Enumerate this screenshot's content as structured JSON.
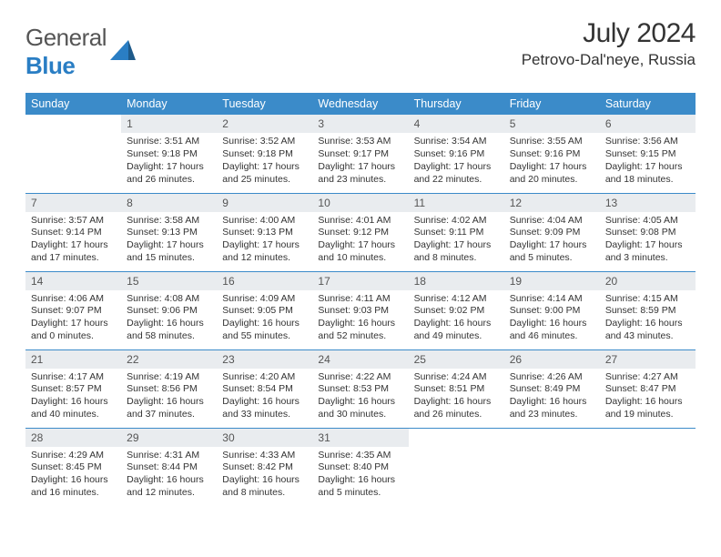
{
  "logo": {
    "text1": "General",
    "text2": "Blue"
  },
  "title": "July 2024",
  "location": "Petrovo-Dal'neye, Russia",
  "colors": {
    "header_bg": "#3b8bc9",
    "header_text": "#ffffff",
    "daynum_bg": "#e9ecef",
    "row_border": "#3b8bc9",
    "logo_gray": "#555555",
    "logo_blue": "#2a7ec4"
  },
  "weekdays": [
    "Sunday",
    "Monday",
    "Tuesday",
    "Wednesday",
    "Thursday",
    "Friday",
    "Saturday"
  ],
  "weeks": [
    [
      {
        "empty": true
      },
      {
        "day": "1",
        "sunrise": "Sunrise: 3:51 AM",
        "sunset": "Sunset: 9:18 PM",
        "daylight1": "Daylight: 17 hours",
        "daylight2": "and 26 minutes."
      },
      {
        "day": "2",
        "sunrise": "Sunrise: 3:52 AM",
        "sunset": "Sunset: 9:18 PM",
        "daylight1": "Daylight: 17 hours",
        "daylight2": "and 25 minutes."
      },
      {
        "day": "3",
        "sunrise": "Sunrise: 3:53 AM",
        "sunset": "Sunset: 9:17 PM",
        "daylight1": "Daylight: 17 hours",
        "daylight2": "and 23 minutes."
      },
      {
        "day": "4",
        "sunrise": "Sunrise: 3:54 AM",
        "sunset": "Sunset: 9:16 PM",
        "daylight1": "Daylight: 17 hours",
        "daylight2": "and 22 minutes."
      },
      {
        "day": "5",
        "sunrise": "Sunrise: 3:55 AM",
        "sunset": "Sunset: 9:16 PM",
        "daylight1": "Daylight: 17 hours",
        "daylight2": "and 20 minutes."
      },
      {
        "day": "6",
        "sunrise": "Sunrise: 3:56 AM",
        "sunset": "Sunset: 9:15 PM",
        "daylight1": "Daylight: 17 hours",
        "daylight2": "and 18 minutes."
      }
    ],
    [
      {
        "day": "7",
        "sunrise": "Sunrise: 3:57 AM",
        "sunset": "Sunset: 9:14 PM",
        "daylight1": "Daylight: 17 hours",
        "daylight2": "and 17 minutes."
      },
      {
        "day": "8",
        "sunrise": "Sunrise: 3:58 AM",
        "sunset": "Sunset: 9:13 PM",
        "daylight1": "Daylight: 17 hours",
        "daylight2": "and 15 minutes."
      },
      {
        "day": "9",
        "sunrise": "Sunrise: 4:00 AM",
        "sunset": "Sunset: 9:13 PM",
        "daylight1": "Daylight: 17 hours",
        "daylight2": "and 12 minutes."
      },
      {
        "day": "10",
        "sunrise": "Sunrise: 4:01 AM",
        "sunset": "Sunset: 9:12 PM",
        "daylight1": "Daylight: 17 hours",
        "daylight2": "and 10 minutes."
      },
      {
        "day": "11",
        "sunrise": "Sunrise: 4:02 AM",
        "sunset": "Sunset: 9:11 PM",
        "daylight1": "Daylight: 17 hours",
        "daylight2": "and 8 minutes."
      },
      {
        "day": "12",
        "sunrise": "Sunrise: 4:04 AM",
        "sunset": "Sunset: 9:09 PM",
        "daylight1": "Daylight: 17 hours",
        "daylight2": "and 5 minutes."
      },
      {
        "day": "13",
        "sunrise": "Sunrise: 4:05 AM",
        "sunset": "Sunset: 9:08 PM",
        "daylight1": "Daylight: 17 hours",
        "daylight2": "and 3 minutes."
      }
    ],
    [
      {
        "day": "14",
        "sunrise": "Sunrise: 4:06 AM",
        "sunset": "Sunset: 9:07 PM",
        "daylight1": "Daylight: 17 hours",
        "daylight2": "and 0 minutes."
      },
      {
        "day": "15",
        "sunrise": "Sunrise: 4:08 AM",
        "sunset": "Sunset: 9:06 PM",
        "daylight1": "Daylight: 16 hours",
        "daylight2": "and 58 minutes."
      },
      {
        "day": "16",
        "sunrise": "Sunrise: 4:09 AM",
        "sunset": "Sunset: 9:05 PM",
        "daylight1": "Daylight: 16 hours",
        "daylight2": "and 55 minutes."
      },
      {
        "day": "17",
        "sunrise": "Sunrise: 4:11 AM",
        "sunset": "Sunset: 9:03 PM",
        "daylight1": "Daylight: 16 hours",
        "daylight2": "and 52 minutes."
      },
      {
        "day": "18",
        "sunrise": "Sunrise: 4:12 AM",
        "sunset": "Sunset: 9:02 PM",
        "daylight1": "Daylight: 16 hours",
        "daylight2": "and 49 minutes."
      },
      {
        "day": "19",
        "sunrise": "Sunrise: 4:14 AM",
        "sunset": "Sunset: 9:00 PM",
        "daylight1": "Daylight: 16 hours",
        "daylight2": "and 46 minutes."
      },
      {
        "day": "20",
        "sunrise": "Sunrise: 4:15 AM",
        "sunset": "Sunset: 8:59 PM",
        "daylight1": "Daylight: 16 hours",
        "daylight2": "and 43 minutes."
      }
    ],
    [
      {
        "day": "21",
        "sunrise": "Sunrise: 4:17 AM",
        "sunset": "Sunset: 8:57 PM",
        "daylight1": "Daylight: 16 hours",
        "daylight2": "and 40 minutes."
      },
      {
        "day": "22",
        "sunrise": "Sunrise: 4:19 AM",
        "sunset": "Sunset: 8:56 PM",
        "daylight1": "Daylight: 16 hours",
        "daylight2": "and 37 minutes."
      },
      {
        "day": "23",
        "sunrise": "Sunrise: 4:20 AM",
        "sunset": "Sunset: 8:54 PM",
        "daylight1": "Daylight: 16 hours",
        "daylight2": "and 33 minutes."
      },
      {
        "day": "24",
        "sunrise": "Sunrise: 4:22 AM",
        "sunset": "Sunset: 8:53 PM",
        "daylight1": "Daylight: 16 hours",
        "daylight2": "and 30 minutes."
      },
      {
        "day": "25",
        "sunrise": "Sunrise: 4:24 AM",
        "sunset": "Sunset: 8:51 PM",
        "daylight1": "Daylight: 16 hours",
        "daylight2": "and 26 minutes."
      },
      {
        "day": "26",
        "sunrise": "Sunrise: 4:26 AM",
        "sunset": "Sunset: 8:49 PM",
        "daylight1": "Daylight: 16 hours",
        "daylight2": "and 23 minutes."
      },
      {
        "day": "27",
        "sunrise": "Sunrise: 4:27 AM",
        "sunset": "Sunset: 8:47 PM",
        "daylight1": "Daylight: 16 hours",
        "daylight2": "and 19 minutes."
      }
    ],
    [
      {
        "day": "28",
        "sunrise": "Sunrise: 4:29 AM",
        "sunset": "Sunset: 8:45 PM",
        "daylight1": "Daylight: 16 hours",
        "daylight2": "and 16 minutes."
      },
      {
        "day": "29",
        "sunrise": "Sunrise: 4:31 AM",
        "sunset": "Sunset: 8:44 PM",
        "daylight1": "Daylight: 16 hours",
        "daylight2": "and 12 minutes."
      },
      {
        "day": "30",
        "sunrise": "Sunrise: 4:33 AM",
        "sunset": "Sunset: 8:42 PM",
        "daylight1": "Daylight: 16 hours",
        "daylight2": "and 8 minutes."
      },
      {
        "day": "31",
        "sunrise": "Sunrise: 4:35 AM",
        "sunset": "Sunset: 8:40 PM",
        "daylight1": "Daylight: 16 hours",
        "daylight2": "and 5 minutes."
      },
      {
        "empty": true
      },
      {
        "empty": true
      },
      {
        "empty": true
      }
    ]
  ]
}
